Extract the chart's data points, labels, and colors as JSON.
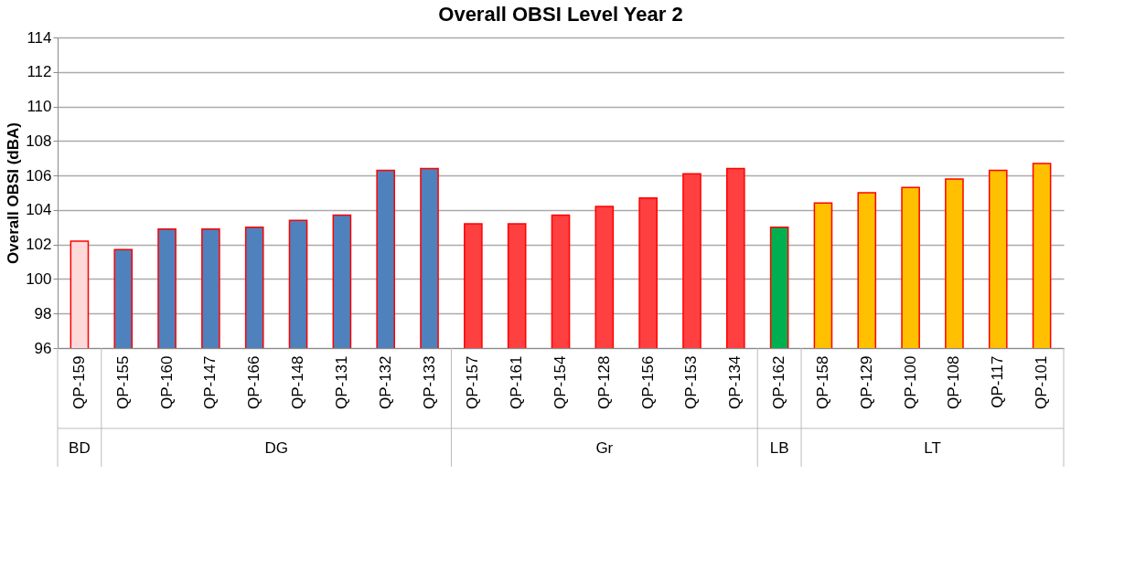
{
  "chart_data": {
    "type": "bar",
    "title": "Overall OBSI Level Year 2",
    "ylabel": "Overall OBSI (dBA)",
    "categories": [
      "QP-159",
      "QP-155",
      "QP-160",
      "QP-147",
      "QP-166",
      "QP-148",
      "QP-131",
      "QP-132",
      "QP-133",
      "QP-157",
      "QP-161",
      "QP-154",
      "QP-128",
      "QP-156",
      "QP-153",
      "QP-134",
      "QP-162",
      "QP-158",
      "QP-129",
      "QP-100",
      "QP-108",
      "QP-117",
      "QP-101"
    ],
    "series": [
      {
        "name": "BD",
        "color": "#ffd9d9",
        "values": [
          102.2,
          null,
          null,
          null,
          null,
          null,
          null,
          null,
          null,
          null,
          null,
          null,
          null,
          null,
          null,
          null,
          null,
          null,
          null,
          null,
          null,
          null,
          null
        ]
      },
      {
        "name": "DG",
        "color": "#4f81bd",
        "values": [
          null,
          101.7,
          102.9,
          102.9,
          103.0,
          103.4,
          103.7,
          106.3,
          106.4,
          null,
          null,
          null,
          null,
          null,
          null,
          null,
          null,
          null,
          null,
          null,
          null,
          null,
          null
        ]
      },
      {
        "name": "Gr",
        "color": "#ff4040",
        "values": [
          null,
          null,
          null,
          null,
          null,
          null,
          null,
          null,
          null,
          103.2,
          103.2,
          103.7,
          104.2,
          104.7,
          106.1,
          106.4,
          null,
          null,
          null,
          null,
          null,
          null,
          null
        ]
      },
      {
        "name": "LB",
        "color": "#00b050",
        "values": [
          null,
          null,
          null,
          null,
          null,
          null,
          null,
          null,
          null,
          null,
          null,
          null,
          null,
          null,
          null,
          null,
          103.0,
          null,
          null,
          null,
          null,
          null,
          null
        ]
      },
      {
        "name": "LT",
        "color": "#ffc000",
        "values": [
          null,
          null,
          null,
          null,
          null,
          null,
          null,
          null,
          null,
          null,
          null,
          null,
          null,
          null,
          null,
          null,
          null,
          104.4,
          105.0,
          105.3,
          105.8,
          106.3,
          106.7
        ]
      }
    ],
    "ylim": [
      96,
      114
    ],
    "yticks": [
      96,
      98,
      100,
      102,
      104,
      106,
      108,
      110,
      112,
      114
    ],
    "grid": "y"
  }
}
